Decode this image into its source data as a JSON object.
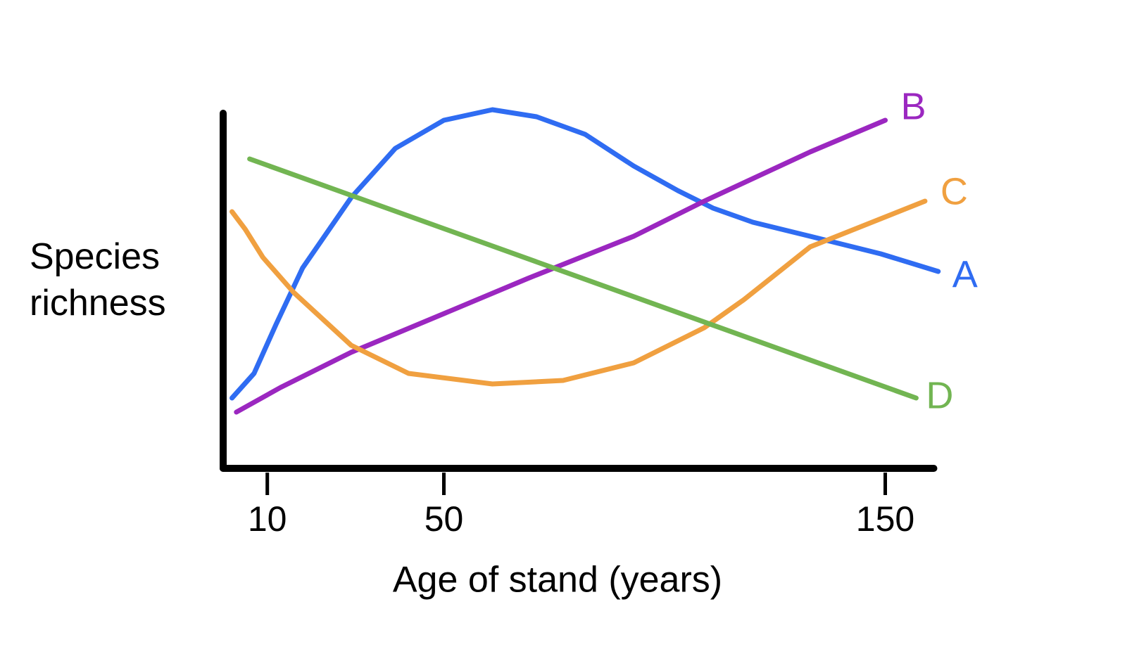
{
  "chart_data": {
    "type": "line",
    "xlabel": "Age of stand (years)",
    "ylabel": "Species richness",
    "xlim": [
      0,
      161
    ],
    "xticks": [
      10,
      50,
      150
    ],
    "ylim": [
      0,
      101
    ],
    "series": [
      {
        "name": "A",
        "color": "#2f6cf2",
        "x": [
          2,
          7,
          12,
          18,
          29,
          39,
          50,
          61,
          71,
          82,
          93,
          103,
          111,
          120,
          133,
          149,
          162
        ],
        "values": [
          20,
          27,
          41,
          57,
          77,
          91,
          99,
          102,
          100,
          95,
          86,
          79,
          74,
          70,
          66,
          61,
          56
        ]
      },
      {
        "name": "B",
        "color": "#9b27c0",
        "x": [
          3,
          13,
          29,
          50,
          69,
          93,
          109,
          133,
          150
        ],
        "values": [
          16,
          23,
          33,
          44,
          54,
          66,
          76,
          90,
          99
        ]
      },
      {
        "name": "C",
        "color": "#f0a040",
        "x": [
          2,
          5,
          9,
          16,
          29,
          42,
          61,
          77,
          93,
          109,
          118,
          133,
          149,
          159
        ],
        "values": [
          73,
          68,
          60,
          50,
          35,
          27,
          24,
          25,
          30,
          40,
          48,
          63,
          71,
          76
        ]
      },
      {
        "name": "D",
        "color": "#72b552",
        "x": [
          6,
          157
        ],
        "values": [
          88,
          20
        ]
      }
    ]
  }
}
